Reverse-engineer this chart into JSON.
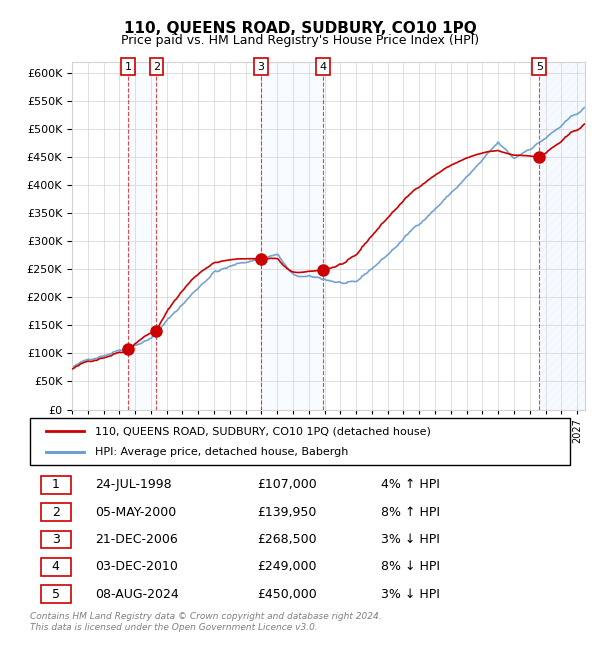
{
  "title": "110, QUEENS ROAD, SUDBURY, CO10 1PQ",
  "subtitle": "Price paid vs. HM Land Registry's House Price Index (HPI)",
  "ylim": [
    0,
    620000
  ],
  "yticks": [
    0,
    50000,
    100000,
    150000,
    200000,
    250000,
    300000,
    350000,
    400000,
    450000,
    500000,
    550000,
    600000
  ],
  "xlim_start": 1995.0,
  "xlim_end": 2027.5,
  "sale_dates": [
    1998.56,
    2000.35,
    2006.97,
    2010.92,
    2024.6
  ],
  "sale_prices": [
    107000,
    139950,
    268500,
    249000,
    450000
  ],
  "sale_labels": [
    "1",
    "2",
    "3",
    "4",
    "5"
  ],
  "sale_info": [
    {
      "num": "1",
      "date": "24-JUL-1998",
      "price": "£107,000",
      "hpi": "4% ↑ HPI"
    },
    {
      "num": "2",
      "date": "05-MAY-2000",
      "price": "£139,950",
      "hpi": "8% ↑ HPI"
    },
    {
      "num": "3",
      "date": "21-DEC-2006",
      "price": "£268,500",
      "hpi": "3% ↓ HPI"
    },
    {
      "num": "4",
      "date": "03-DEC-2010",
      "price": "£249,000",
      "hpi": "8% ↓ HPI"
    },
    {
      "num": "5",
      "date": "08-AUG-2024",
      "price": "£450,000",
      "hpi": "3% ↓ HPI"
    }
  ],
  "red_color": "#cc0000",
  "blue_color": "#6699cc",
  "bg_highlight_color": "#ddeeff",
  "footer": "Contains HM Land Registry data © Crown copyright and database right 2024.\nThis data is licensed under the Open Government Licence v3.0.",
  "legend_line1": "110, QUEENS ROAD, SUDBURY, CO10 1PQ (detached house)",
  "legend_line2": "HPI: Average price, detached house, Babergh"
}
